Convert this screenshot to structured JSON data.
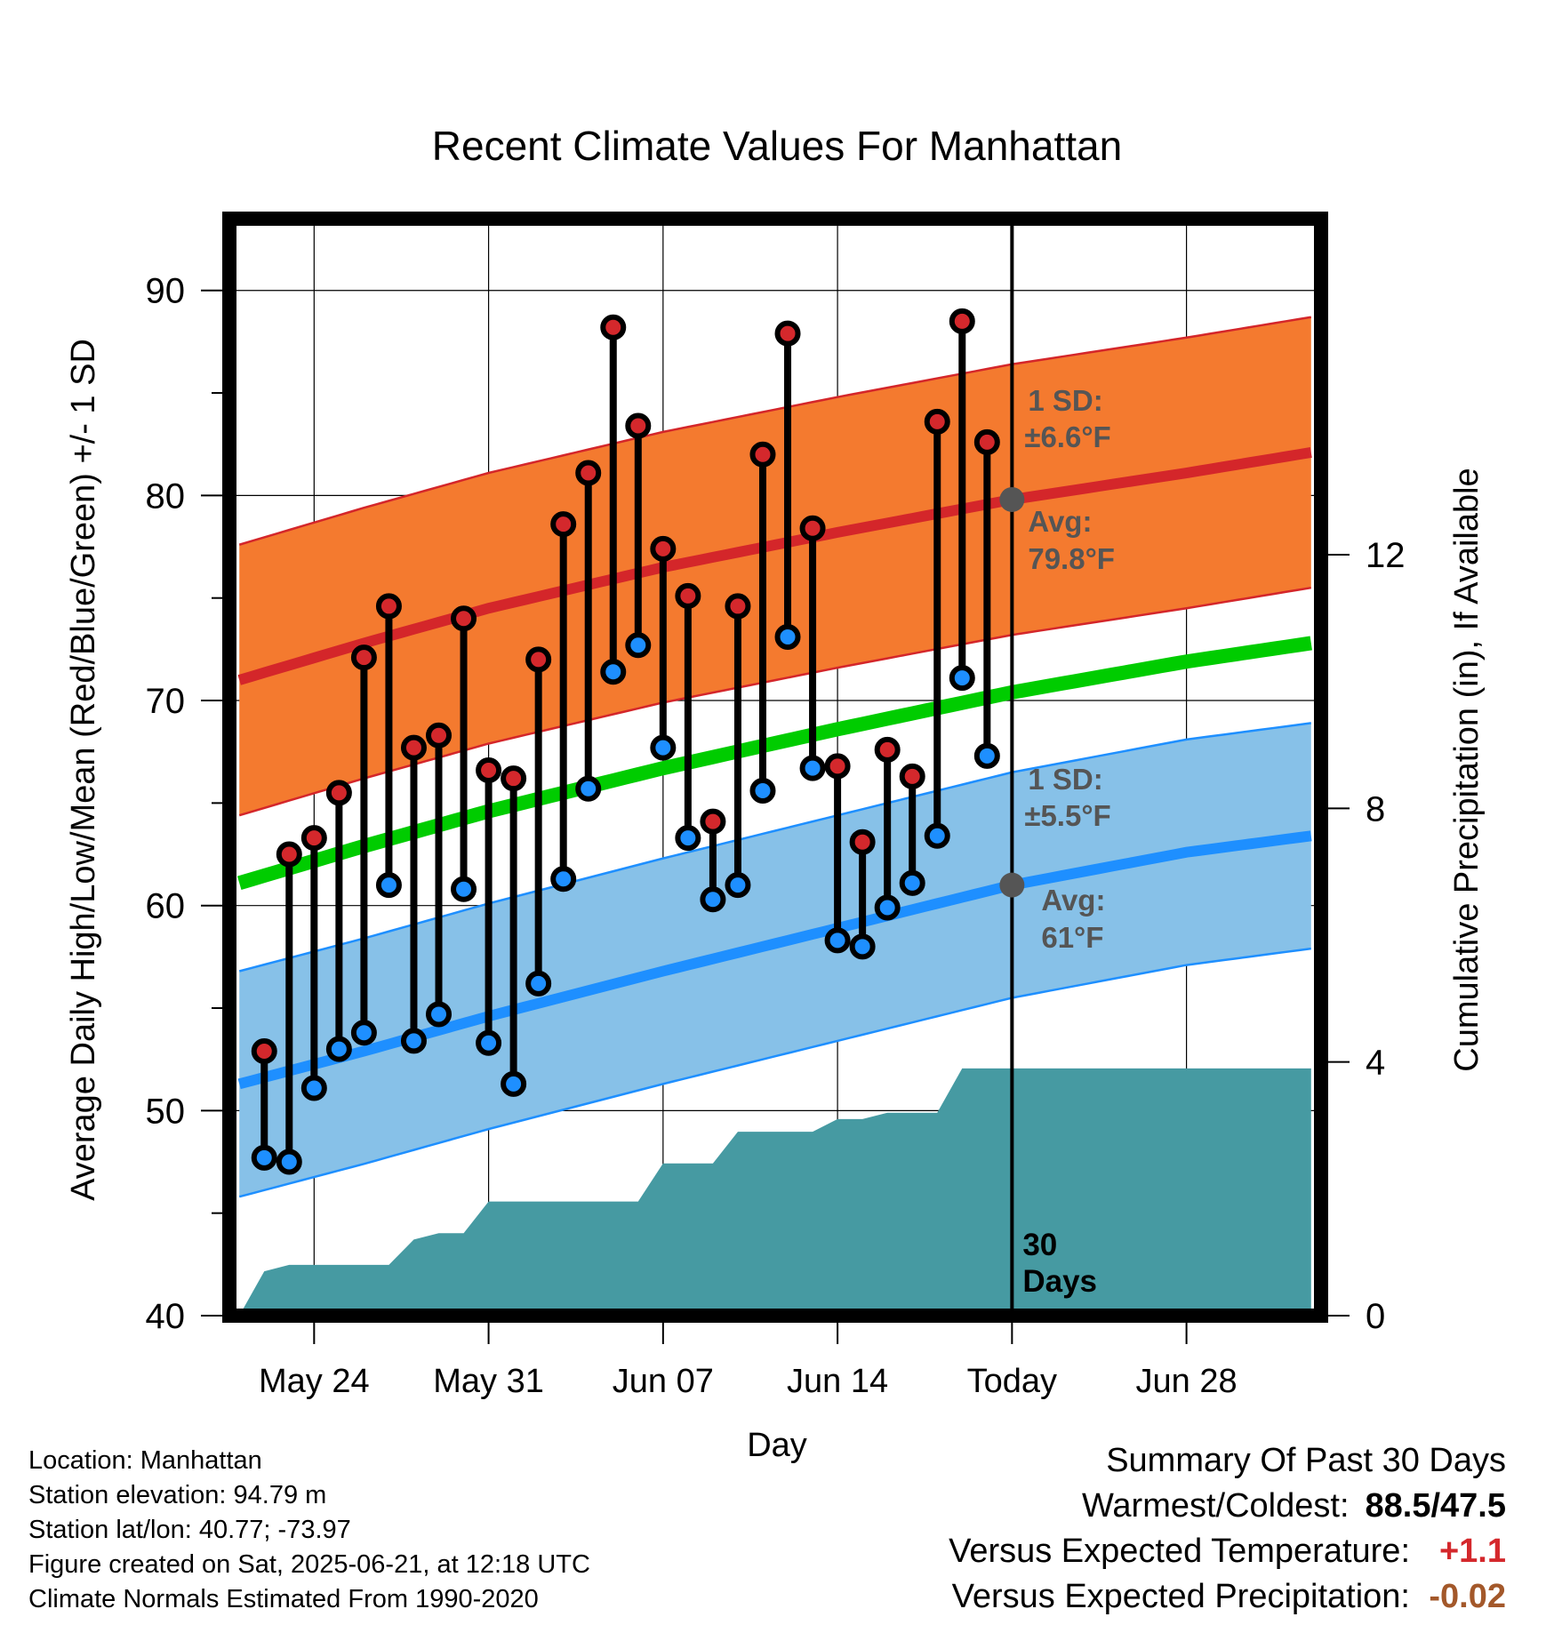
{
  "chart_data": {
    "type": "line",
    "title": "Recent Climate Values For Manhattan",
    "xlabel": "Day",
    "ylabel": "Average Daily High/Low/Mean (Red/Blue/Green) +/- 1 SD",
    "y2label": "Cumulative Precipitation (in), If Available",
    "ylim": [
      40,
      93.5
    ],
    "y2lim": [
      0,
      17.3
    ],
    "xlim": [
      -3.4,
      40.4
    ],
    "x_tick_days": [
      0,
      7,
      14,
      21,
      28,
      35
    ],
    "x_tick_labels": [
      "May 24",
      "May 31",
      "Jun 07",
      "Jun 14",
      "Today",
      "Jun 28"
    ],
    "y_ticks": [
      40,
      50,
      60,
      70,
      80,
      90
    ],
    "y2_ticks": [
      0,
      4,
      8,
      12
    ],
    "grid": true,
    "today_day": 28,
    "normal_high": {
      "days": [
        -3,
        2,
        7,
        14,
        21,
        28,
        35,
        40
      ],
      "mean": [
        71.0,
        72.8,
        74.5,
        76.5,
        78.2,
        79.8,
        81.1,
        82.1
      ],
      "sd": 6.6
    },
    "normal_low": {
      "days": [
        -3,
        2,
        7,
        14,
        21,
        28,
        35,
        40
      ],
      "mean": [
        51.3,
        52.9,
        54.6,
        56.8,
        58.9,
        61.0,
        62.6,
        63.4
      ],
      "sd": 5.5
    },
    "normal_mean": {
      "days": [
        -3,
        2,
        7,
        14,
        21,
        28,
        35,
        40
      ],
      "values": [
        61.1,
        62.9,
        64.6,
        66.7,
        68.6,
        70.4,
        71.9,
        72.8
      ]
    },
    "series": [
      {
        "name": "High",
        "days": [
          -2,
          -1,
          0,
          1,
          2,
          3,
          4,
          5,
          6,
          7,
          8,
          9,
          10,
          11,
          12,
          13,
          14,
          15,
          16,
          17,
          18,
          19,
          20,
          21,
          22,
          23,
          24,
          25,
          26,
          27
        ],
        "values": [
          52.9,
          62.5,
          63.3,
          65.5,
          72.1,
          74.6,
          67.7,
          68.3,
          74.0,
          66.6,
          66.2,
          72.0,
          78.6,
          81.1,
          88.2,
          83.4,
          77.4,
          75.1,
          64.1,
          74.6,
          82.0,
          87.9,
          78.4,
          66.8,
          63.1,
          67.6,
          66.3,
          83.6,
          88.5,
          82.6
        ]
      },
      {
        "name": "Low",
        "days": [
          -2,
          -1,
          0,
          1,
          2,
          3,
          4,
          5,
          6,
          7,
          8,
          9,
          10,
          11,
          12,
          13,
          14,
          15,
          16,
          17,
          18,
          19,
          20,
          21,
          22,
          23,
          24,
          25,
          26,
          27
        ],
        "values": [
          47.7,
          47.5,
          51.1,
          53.0,
          53.8,
          61.0,
          53.4,
          54.7,
          60.8,
          53.3,
          51.3,
          56.2,
          61.3,
          65.7,
          71.4,
          72.7,
          67.7,
          63.3,
          60.3,
          61.0,
          65.6,
          73.1,
          66.7,
          58.3,
          58.0,
          59.9,
          61.1,
          63.4,
          71.1,
          67.3
        ]
      },
      {
        "name": "Cumulative Precipitation",
        "days": [
          -3,
          -2,
          -1,
          0,
          1,
          2,
          3,
          4,
          5,
          6,
          7,
          8,
          9,
          10,
          11,
          12,
          13,
          14,
          15,
          16,
          17,
          18,
          19,
          20,
          21,
          22,
          23,
          24,
          25,
          26,
          27,
          28,
          40
        ],
        "values": [
          0.0,
          0.7,
          0.8,
          0.8,
          0.8,
          0.8,
          0.8,
          1.2,
          1.3,
          1.3,
          1.8,
          1.8,
          1.8,
          1.8,
          1.8,
          1.8,
          1.8,
          2.4,
          2.4,
          2.4,
          2.9,
          2.9,
          2.9,
          2.9,
          3.1,
          3.1,
          3.2,
          3.2,
          3.2,
          3.9,
          3.9,
          3.9,
          3.9
        ]
      }
    ],
    "annotations": {
      "high_sd_label": "1 SD:",
      "high_sd_value": "±6.6°F",
      "high_avg_label": "Avg:",
      "high_avg_value": "79.8°F",
      "low_sd_label": "1 SD:",
      "low_sd_value": "±5.5°F",
      "low_avg_label": "Avg:",
      "low_avg_value": "61°F",
      "days_line1": "30",
      "days_line2": "Days"
    },
    "colors": {
      "high_band": "#f47a2f",
      "high_line": "#d4262a",
      "low_band": "#87c1e8",
      "low_line": "#1e8fff",
      "mean_line": "#00cc00",
      "precip": "#469aa2",
      "high_dot": "#d4282c",
      "low_dot": "#1e8fff",
      "annotation": "#555555"
    }
  },
  "footer": {
    "location": "Location: Manhattan",
    "elevation": "Station elevation: 94.79 m",
    "latlon": "Station lat/lon: 40.77; -73.97",
    "created": "Figure created on Sat, 2025-06-21, at 12:18 UTC",
    "normals": "Climate Normals Estimated From 1990-2020"
  },
  "summary": {
    "title": "Summary Of Past 30 Days",
    "warmest_coldest_label": "Warmest/Coldest:",
    "warmest_coldest_value": "88.5/47.5",
    "temp_label": "Versus Expected Temperature:",
    "temp_value": "+1.1",
    "precip_label": "Versus Expected Precipitation:",
    "precip_value": "-0.02"
  }
}
